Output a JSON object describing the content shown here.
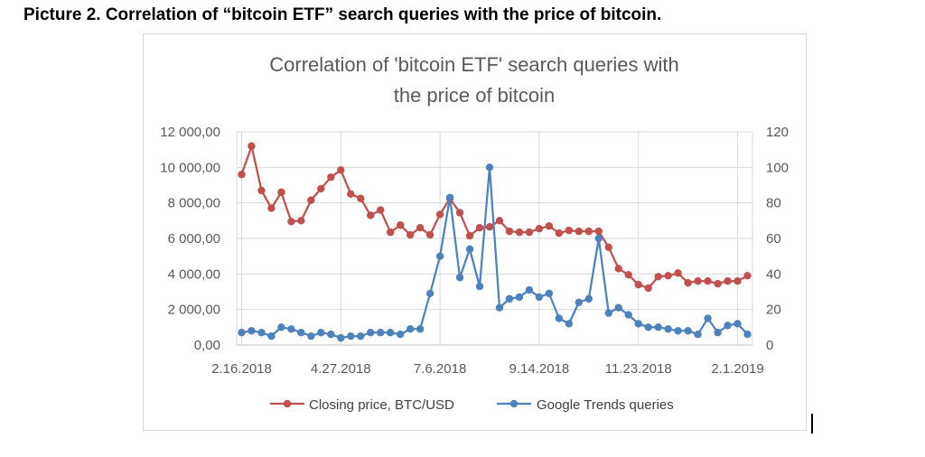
{
  "caption": "Picture 2. Correlation of “bitcoin ETF” search queries with the price of bitcoin.",
  "chart_data": {
    "type": "line",
    "title_line1": "Correlation of 'bitcoin ETF' search queries with",
    "title_line2": "the price of bitcoin",
    "left_axis": {
      "ylim": [
        0,
        12000
      ],
      "ticks": [
        0,
        2000,
        4000,
        6000,
        8000,
        10000,
        12000
      ],
      "tick_labels": [
        "0,00",
        "2 000,00",
        "4 000,00",
        "6 000,00",
        "8 000,00",
        "10 000,00",
        "12 000,00"
      ]
    },
    "right_axis": {
      "ylim": [
        0,
        120
      ],
      "ticks": [
        0,
        20,
        40,
        60,
        80,
        100,
        120
      ],
      "tick_labels": [
        "0",
        "20",
        "40",
        "60",
        "80",
        "100",
        "120"
      ]
    },
    "x_tick_labels": [
      {
        "index": 0,
        "label": "2.16.2018"
      },
      {
        "index": 10,
        "label": "4.27.2018"
      },
      {
        "index": 20,
        "label": "7.6.2018"
      },
      {
        "index": 30,
        "label": "9.14.2018"
      },
      {
        "index": 40,
        "label": "11.23.2018"
      },
      {
        "index": 50,
        "label": "2.1.2019"
      }
    ],
    "series": [
      {
        "name": "Closing price, BTC/USD",
        "axis": "left",
        "color": "#c0504d",
        "values": [
          9600,
          11200,
          8700,
          7700,
          8600,
          6950,
          7000,
          8150,
          8800,
          9450,
          9850,
          8500,
          8250,
          7300,
          7600,
          6350,
          6750,
          6200,
          6600,
          6200,
          7350,
          8250,
          7450,
          6150,
          6600,
          6650,
          7000,
          6400,
          6350,
          6350,
          6550,
          6700,
          6300,
          6450,
          6400,
          6400,
          6400,
          5500,
          4300,
          3950,
          3400,
          3200,
          3850,
          3900,
          4050,
          3500,
          3600,
          3600,
          3450,
          3600,
          3600,
          3900
        ]
      },
      {
        "name": "Google Trends queries",
        "axis": "right",
        "color": "#4f81bd",
        "values": [
          7,
          8,
          7,
          5,
          10,
          9,
          7,
          5,
          7,
          6,
          4,
          5,
          5,
          7,
          7,
          7,
          6,
          9,
          9,
          29,
          50,
          83,
          38,
          54,
          33,
          100,
          21,
          26,
          27,
          31,
          27,
          29,
          15,
          12,
          24,
          26,
          60,
          18,
          21,
          17,
          12,
          10,
          10,
          9,
          8,
          8,
          6,
          15,
          7,
          11,
          12,
          6
        ]
      }
    ]
  }
}
